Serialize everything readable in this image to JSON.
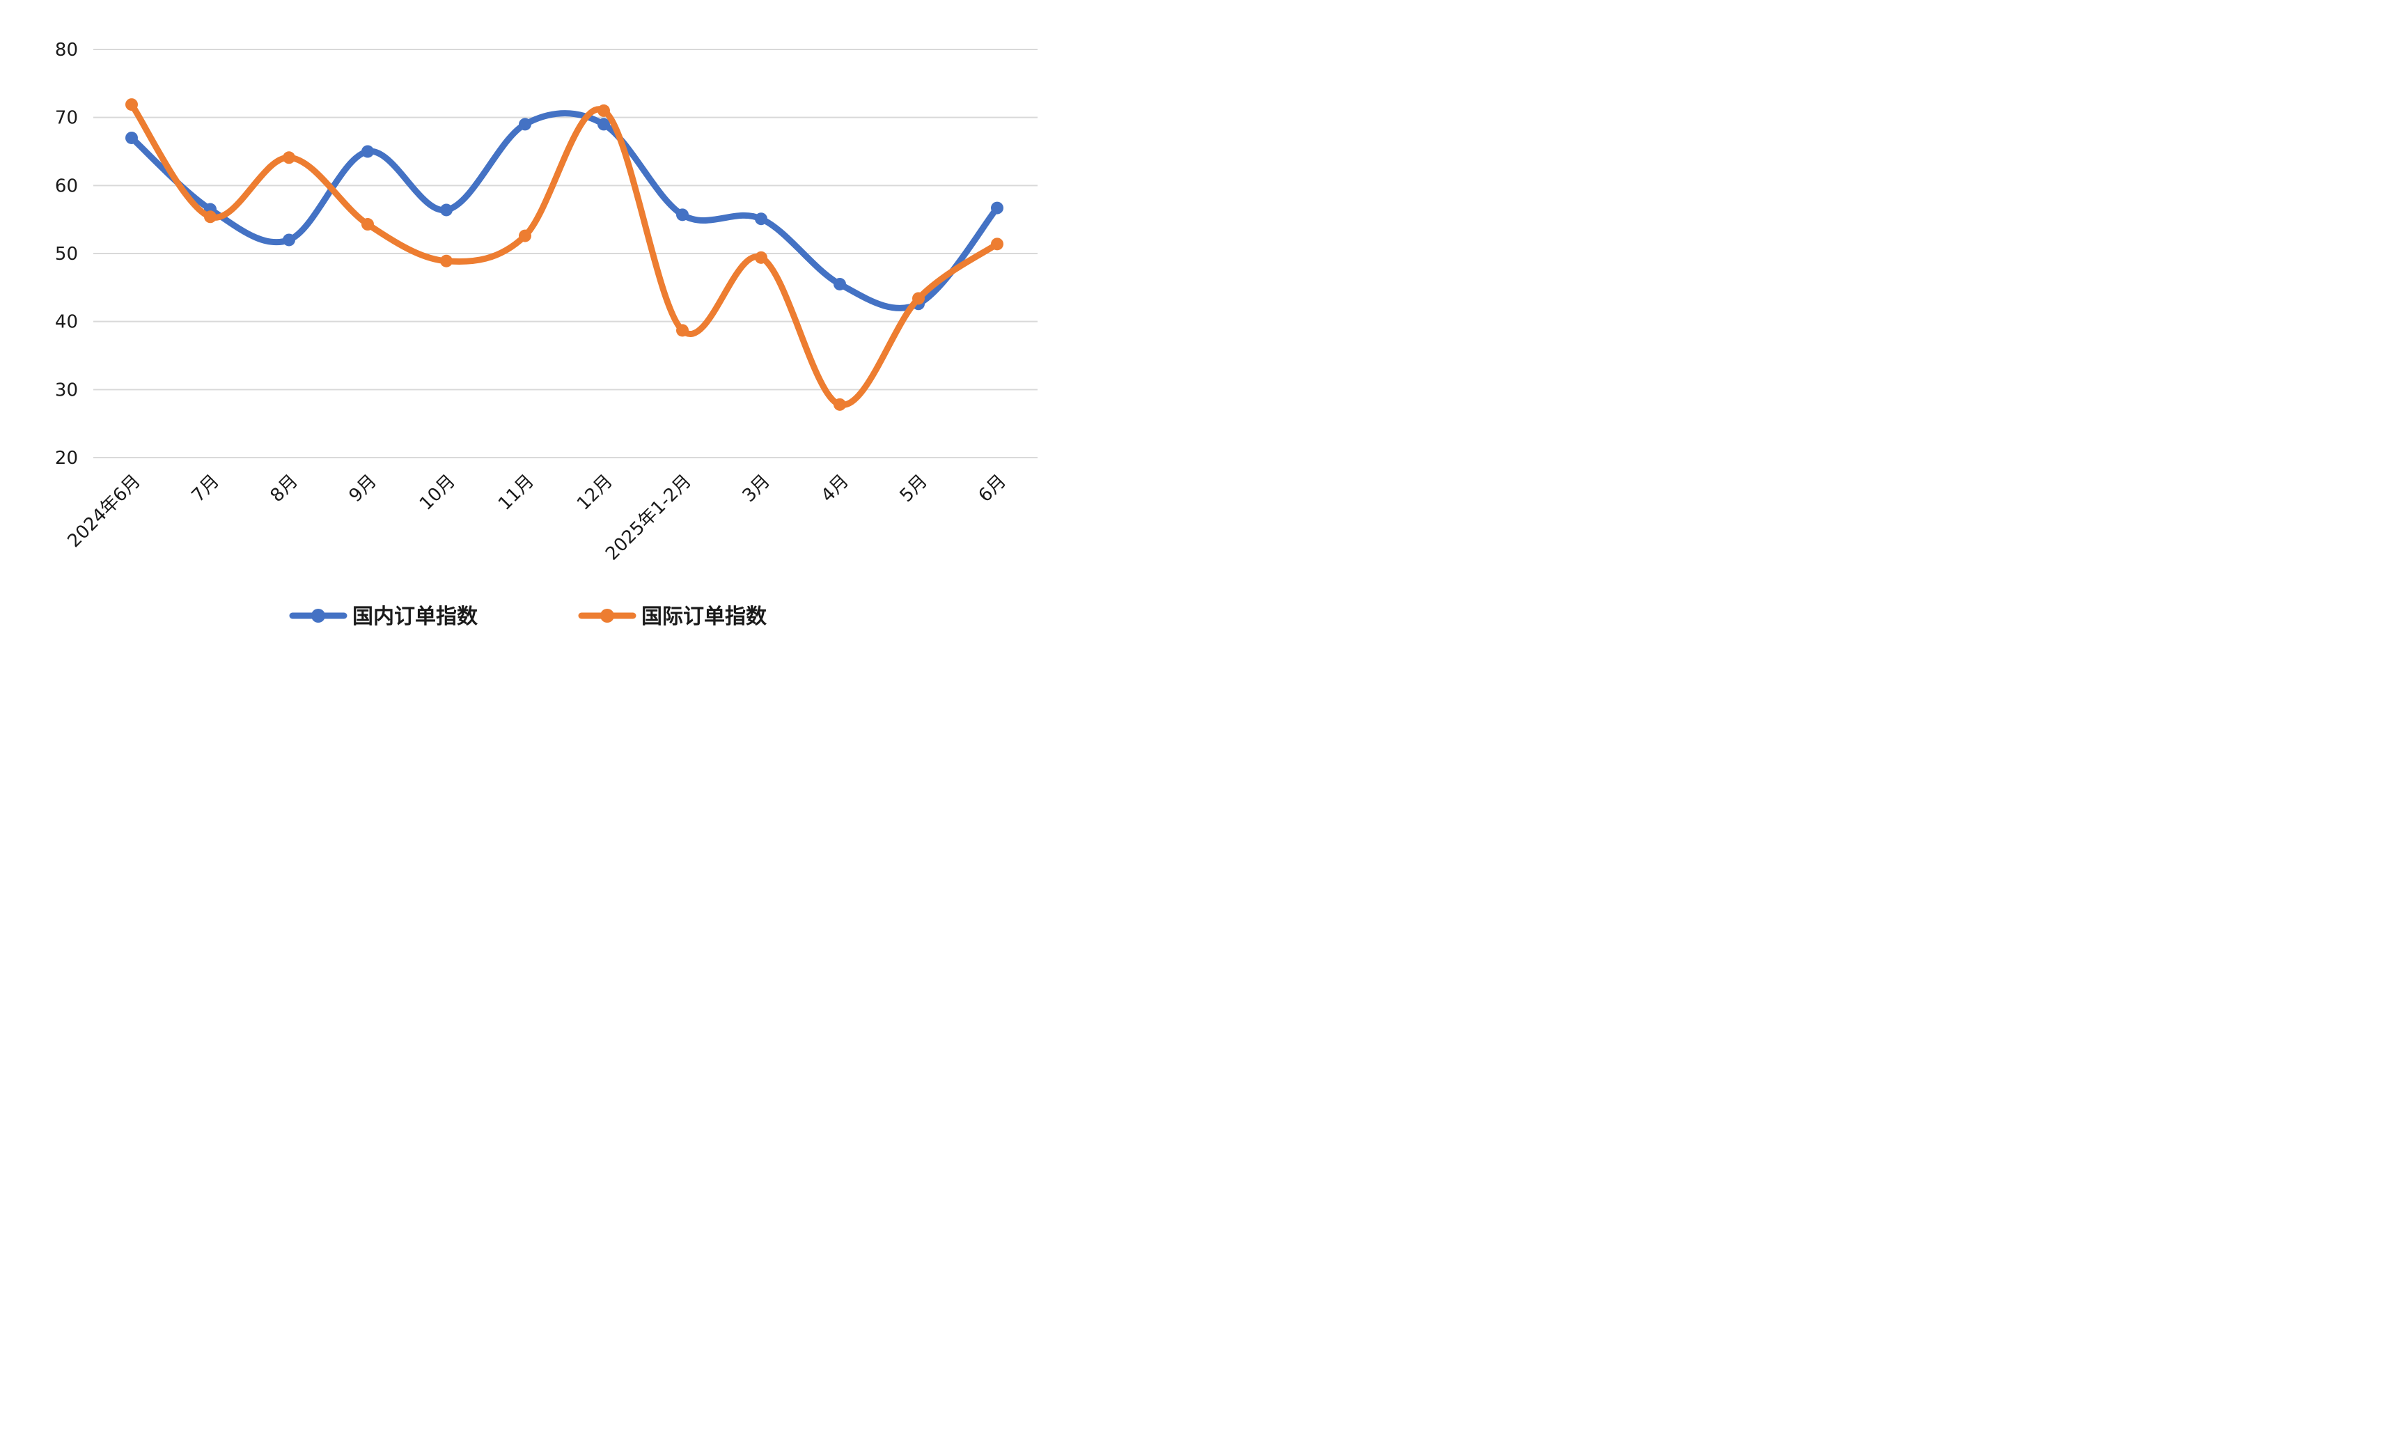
{
  "chart_data": {
    "type": "line",
    "smooth": true,
    "categories": [
      "2024年6月",
      "7月",
      "8月",
      "9月",
      "10月",
      "11月",
      "12月",
      "2025年1-2月",
      "3月",
      "4月",
      "5月",
      "6月"
    ],
    "series": [
      {
        "name": "国内订单指数",
        "color": "#4472C4",
        "values": [
          67.0,
          56.5,
          52.0,
          65.0,
          56.4,
          69.0,
          69.0,
          55.7,
          55.1,
          45.5,
          42.6,
          56.7
        ]
      },
      {
        "name": "国际订单指数",
        "color": "#ED7D31",
        "values": [
          71.9,
          55.4,
          64.1,
          54.3,
          48.9,
          52.6,
          71.0,
          38.7,
          49.4,
          27.8,
          43.4,
          51.4
        ]
      }
    ],
    "ylim": [
      20,
      80
    ],
    "yticks": [
      20,
      30,
      40,
      50,
      60,
      70,
      80
    ],
    "grid": true,
    "legend_position": "bottom"
  }
}
